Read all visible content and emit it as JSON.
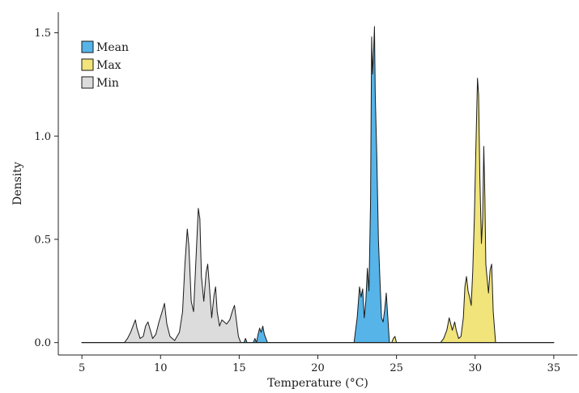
{
  "chart_data": {
    "type": "area",
    "xlabel": "Temperature (°C)",
    "ylabel": "Density",
    "xlim": [
      3.5,
      36.5
    ],
    "ylim": [
      -0.06,
      1.6
    ],
    "x_ticks": [
      5,
      10,
      15,
      20,
      25,
      30,
      35
    ],
    "x_tick_labels": [
      "5",
      "10",
      "15",
      "20",
      "25",
      "30",
      "35"
    ],
    "y_ticks": [
      0,
      0.5,
      1.0,
      1.5
    ],
    "y_tick_labels": [
      "0.0",
      "0.5",
      "1.0",
      "1.5"
    ],
    "grid": false,
    "legend_position": "top-left",
    "series": [
      {
        "name": "Mean",
        "color": "#56B4E9",
        "points": [
          [
            5,
            0
          ],
          [
            12,
            0
          ],
          [
            12.3,
            0.02
          ],
          [
            12.5,
            0
          ],
          [
            13.2,
            0
          ],
          [
            13.3,
            0.03
          ],
          [
            13.4,
            0
          ],
          [
            15.3,
            0
          ],
          [
            15.4,
            0.02
          ],
          [
            15.5,
            0
          ],
          [
            15.9,
            0
          ],
          [
            16.0,
            0.02
          ],
          [
            16.1,
            0
          ],
          [
            16.2,
            0.04
          ],
          [
            16.3,
            0.07
          ],
          [
            16.4,
            0.05
          ],
          [
            16.5,
            0.08
          ],
          [
            16.6,
            0.04
          ],
          [
            16.8,
            0
          ],
          [
            22.3,
            0
          ],
          [
            22.5,
            0.12
          ],
          [
            22.65,
            0.27
          ],
          [
            22.75,
            0.22
          ],
          [
            22.85,
            0.26
          ],
          [
            22.95,
            0.12
          ],
          [
            23.05,
            0.2
          ],
          [
            23.15,
            0.36
          ],
          [
            23.25,
            0.25
          ],
          [
            23.35,
            0.68
          ],
          [
            23.42,
            1.48
          ],
          [
            23.48,
            1.3
          ],
          [
            23.55,
            1.42
          ],
          [
            23.6,
            1.53
          ],
          [
            23.65,
            1.2
          ],
          [
            23.75,
            0.9
          ],
          [
            23.85,
            0.5
          ],
          [
            23.95,
            0.3
          ],
          [
            24.05,
            0.12
          ],
          [
            24.15,
            0.1
          ],
          [
            24.25,
            0.16
          ],
          [
            24.35,
            0.24
          ],
          [
            24.45,
            0.12
          ],
          [
            24.55,
            0
          ],
          [
            25,
            0
          ],
          [
            35,
            0
          ]
        ]
      },
      {
        "name": "Max",
        "color": "#F0E47A",
        "points": [
          [
            5,
            0
          ],
          [
            24.7,
            0
          ],
          [
            24.8,
            0.02
          ],
          [
            24.9,
            0.03
          ],
          [
            25.0,
            0
          ],
          [
            27.8,
            0
          ],
          [
            28.0,
            0.02
          ],
          [
            28.2,
            0.06
          ],
          [
            28.35,
            0.12
          ],
          [
            28.45,
            0.09
          ],
          [
            28.55,
            0.06
          ],
          [
            28.7,
            0.1
          ],
          [
            28.8,
            0.06
          ],
          [
            28.95,
            0.02
          ],
          [
            29.1,
            0.03
          ],
          [
            29.25,
            0.12
          ],
          [
            29.35,
            0.27
          ],
          [
            29.45,
            0.32
          ],
          [
            29.55,
            0.25
          ],
          [
            29.65,
            0.22
          ],
          [
            29.75,
            0.18
          ],
          [
            29.85,
            0.35
          ],
          [
            29.95,
            0.6
          ],
          [
            30.05,
            0.95
          ],
          [
            30.15,
            1.28
          ],
          [
            30.22,
            1.2
          ],
          [
            30.3,
            0.8
          ],
          [
            30.4,
            0.48
          ],
          [
            30.48,
            0.6
          ],
          [
            30.55,
            0.95
          ],
          [
            30.62,
            0.7
          ],
          [
            30.68,
            0.38
          ],
          [
            30.75,
            0.32
          ],
          [
            30.85,
            0.24
          ],
          [
            30.95,
            0.35
          ],
          [
            31.05,
            0.38
          ],
          [
            31.15,
            0.15
          ],
          [
            31.3,
            0
          ],
          [
            35,
            0
          ]
        ]
      },
      {
        "name": "Min",
        "color": "#DCDCDC",
        "points": [
          [
            5,
            0
          ],
          [
            7.7,
            0
          ],
          [
            7.9,
            0.02
          ],
          [
            8.1,
            0.05
          ],
          [
            8.25,
            0.08
          ],
          [
            8.4,
            0.11
          ],
          [
            8.5,
            0.07
          ],
          [
            8.7,
            0.02
          ],
          [
            8.9,
            0.03
          ],
          [
            9.05,
            0.08
          ],
          [
            9.2,
            0.1
          ],
          [
            9.35,
            0.06
          ],
          [
            9.5,
            0.02
          ],
          [
            9.7,
            0.04
          ],
          [
            9.9,
            0.1
          ],
          [
            10.1,
            0.15
          ],
          [
            10.25,
            0.19
          ],
          [
            10.4,
            0.09
          ],
          [
            10.6,
            0.03
          ],
          [
            10.9,
            0.01
          ],
          [
            11.2,
            0.05
          ],
          [
            11.4,
            0.15
          ],
          [
            11.55,
            0.38
          ],
          [
            11.7,
            0.55
          ],
          [
            11.8,
            0.47
          ],
          [
            11.95,
            0.2
          ],
          [
            12.1,
            0.15
          ],
          [
            12.25,
            0.4
          ],
          [
            12.4,
            0.65
          ],
          [
            12.5,
            0.6
          ],
          [
            12.6,
            0.32
          ],
          [
            12.75,
            0.2
          ],
          [
            12.9,
            0.34
          ],
          [
            13.0,
            0.38
          ],
          [
            13.1,
            0.28
          ],
          [
            13.25,
            0.12
          ],
          [
            13.4,
            0.23
          ],
          [
            13.5,
            0.27
          ],
          [
            13.6,
            0.15
          ],
          [
            13.75,
            0.08
          ],
          [
            13.9,
            0.11
          ],
          [
            14.05,
            0.1
          ],
          [
            14.2,
            0.09
          ],
          [
            14.4,
            0.11
          ],
          [
            14.6,
            0.16
          ],
          [
            14.7,
            0.18
          ],
          [
            14.8,
            0.12
          ],
          [
            14.95,
            0.03
          ],
          [
            15.1,
            0
          ],
          [
            35,
            0
          ]
        ]
      }
    ]
  }
}
